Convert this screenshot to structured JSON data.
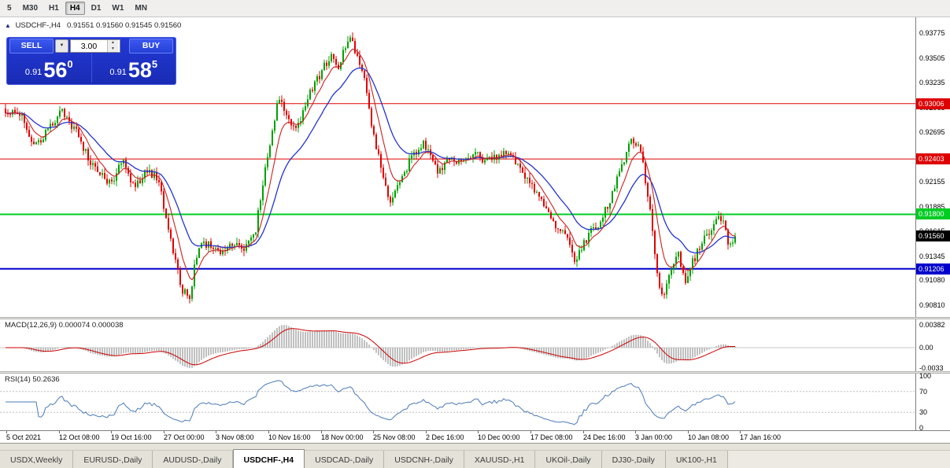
{
  "toolbar": {
    "buttons": [
      "5",
      "M30",
      "H1",
      "H4",
      "D1",
      "W1",
      "MN"
    ],
    "active": "H4"
  },
  "symbol_header": {
    "symbol": "USDCHF-,H4",
    "ohlc": "0.91551 0.91560 0.91545 0.91560"
  },
  "trade_panel": {
    "sell_label": "SELL",
    "buy_label": "BUY",
    "lot": "3.00",
    "sell_price": {
      "small": "0.91",
      "big": "56",
      "sup": "0"
    },
    "buy_price": {
      "small": "0.91",
      "big": "58",
      "sup": "5"
    }
  },
  "chart_data": [
    {
      "type": "candlestick",
      "title": "USDCHF-,H4",
      "symbol": "USDCHF",
      "timeframe": "H4",
      "candles_count": 310,
      "colors": {
        "up": "#00a000",
        "down": "#e00000",
        "ma_blue": "#2433cc",
        "ma_red": "#cc2020"
      },
      "price_range": {
        "top": 0.93775,
        "bottom": 0.9081
      },
      "y_axis_labels": [
        "0.93775",
        "0.93505",
        "0.93235",
        "0.92965",
        "0.92695",
        "0.92425",
        "0.92155",
        "0.91885",
        "0.91615",
        "0.91345",
        "0.91080",
        "0.90810"
      ],
      "hlines": [
        {
          "price": 0.93006,
          "label": "0.93006",
          "color": "#dd0000",
          "width": 1
        },
        {
          "price": 0.92403,
          "label": "0.92403",
          "color": "#dd0000",
          "width": 1
        },
        {
          "price": 0.918,
          "label": "0.91800",
          "color": "#00cc22",
          "width": 2
        },
        {
          "price": 0.91206,
          "label": "0.91206",
          "color": "#0000cc",
          "width": 2
        }
      ],
      "current_price": {
        "value": 0.9156,
        "label": "0.91560",
        "color": "#000000"
      },
      "price_path": [
        [
          0.0,
          0.9295
        ],
        [
          0.022,
          0.9288
        ],
        [
          0.038,
          0.9252
        ],
        [
          0.054,
          0.9266
        ],
        [
          0.075,
          0.9293
        ],
        [
          0.097,
          0.927
        ],
        [
          0.113,
          0.9242
        ],
        [
          0.129,
          0.9222
        ],
        [
          0.145,
          0.9215
        ],
        [
          0.161,
          0.9237
        ],
        [
          0.177,
          0.9208
        ],
        [
          0.193,
          0.923
        ],
        [
          0.209,
          0.9218
        ],
        [
          0.225,
          0.916
        ],
        [
          0.241,
          0.9098
        ],
        [
          0.252,
          0.9088
        ],
        [
          0.263,
          0.914
        ],
        [
          0.279,
          0.915
        ],
        [
          0.295,
          0.9133
        ],
        [
          0.311,
          0.915
        ],
        [
          0.327,
          0.914
        ],
        [
          0.343,
          0.9165
        ],
        [
          0.359,
          0.9245
        ],
        [
          0.375,
          0.9308
        ],
        [
          0.386,
          0.9288
        ],
        [
          0.397,
          0.9268
        ],
        [
          0.413,
          0.9305
        ],
        [
          0.429,
          0.933
        ],
        [
          0.445,
          0.9352
        ],
        [
          0.456,
          0.9338
        ],
        [
          0.47,
          0.9372
        ],
        [
          0.483,
          0.9355
        ],
        [
          0.493,
          0.932
        ],
        [
          0.504,
          0.927
        ],
        [
          0.515,
          0.9228
        ],
        [
          0.527,
          0.9188
        ],
        [
          0.54,
          0.9218
        ],
        [
          0.556,
          0.924
        ],
        [
          0.572,
          0.9258
        ],
        [
          0.583,
          0.924
        ],
        [
          0.594,
          0.9225
        ],
        [
          0.61,
          0.9242
        ],
        [
          0.626,
          0.9235
        ],
        [
          0.642,
          0.925
        ],
        [
          0.653,
          0.9238
        ],
        [
          0.669,
          0.9242
        ],
        [
          0.685,
          0.9245
        ],
        [
          0.701,
          0.9235
        ],
        [
          0.717,
          0.9215
        ],
        [
          0.733,
          0.9195
        ],
        [
          0.749,
          0.9172
        ],
        [
          0.76,
          0.9162
        ],
        [
          0.771,
          0.915
        ],
        [
          0.782,
          0.9128
        ],
        [
          0.793,
          0.9148
        ],
        [
          0.804,
          0.9165
        ],
        [
          0.815,
          0.9172
        ],
        [
          0.831,
          0.92
        ],
        [
          0.847,
          0.9238
        ],
        [
          0.858,
          0.9262
        ],
        [
          0.869,
          0.9256
        ],
        [
          0.88,
          0.9205
        ],
        [
          0.891,
          0.913
        ],
        [
          0.9,
          0.9088
        ],
        [
          0.91,
          0.9118
        ],
        [
          0.921,
          0.9138
        ],
        [
          0.932,
          0.911
        ],
        [
          0.943,
          0.913
        ],
        [
          0.957,
          0.9152
        ],
        [
          0.97,
          0.9168
        ],
        [
          0.981,
          0.9178
        ],
        [
          0.991,
          0.915
        ],
        [
          1.0,
          0.9156
        ]
      ],
      "x_axis_labels": [
        "5 Oct 2021",
        "12 Oct 08:00",
        "19 Oct 16:00",
        "27 Oct 00:00",
        "3 Nov 08:00",
        "10 Nov 16:00",
        "18 Nov 00:00",
        "25 Nov 08:00",
        "2 Dec 16:00",
        "10 Dec 00:00",
        "17 Dec 08:00",
        "24 Dec 16:00",
        "3 Jan 00:00",
        "10 Jan 08:00",
        "17 Jan 16:00"
      ]
    },
    {
      "type": "line",
      "name": "MACD",
      "label": "MACD(12,26,9) 0.000074 0.000038",
      "params": {
        "fast": 12,
        "slow": 26,
        "signal": 9
      },
      "axis_labels": [
        "0.00382",
        "0.00",
        "-0.0033"
      ],
      "colors": {
        "histogram": "#c0c0c0",
        "signal": "#cc0000"
      }
    },
    {
      "type": "line",
      "name": "RSI",
      "label": "RSI(14) 50.2636",
      "period": 14,
      "levels": [
        70,
        30
      ],
      "axis_labels": [
        "100",
        "70",
        "30",
        "0"
      ],
      "colors": {
        "line": "#4a7ab8"
      }
    }
  ],
  "tabs": {
    "items": [
      "USDX,Weekly",
      "EURUSD-,Daily",
      "AUDUSD-,Daily",
      "USDCHF-,H4",
      "USDCAD-,Daily",
      "USDCNH-,Daily",
      "XAUUSD-,H1",
      "UKOil-,Daily",
      "DJ30-,Daily",
      "UK100-,H1"
    ],
    "active": "USDCHF-,H4"
  }
}
